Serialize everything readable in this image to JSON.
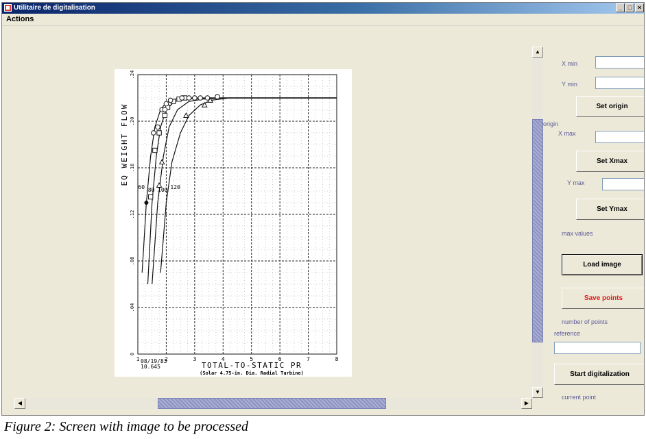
{
  "window": {
    "title": "Utilitaire de digitalisation",
    "buttons": {
      "minimize": "_",
      "maximize": "□",
      "close": "×"
    }
  },
  "menu": {
    "items": [
      "Actions"
    ]
  },
  "panel": {
    "xmin_label": "X min",
    "xmin_value": "",
    "ymin_label": "Y min",
    "ymin_value": "",
    "set_origin_label": "Set origin",
    "origin_label": "origin",
    "xmax_label": "X max",
    "xmax_value": "",
    "set_xmax_label": "Set Xmax",
    "ymax_label": "Y max",
    "ymax_value": "",
    "set_ymax_label": "Set Ymax",
    "max_values_label": "max values",
    "load_image_label": "Load image",
    "save_points_label": "Save points",
    "number_of_points_label": "number of points",
    "reference_label": "reference",
    "reference_value": "",
    "start_digitalization_label": "Start digitalization",
    "current_point_label": "current point"
  },
  "colors": {
    "accent_red": "#e01b1b",
    "label_blue": "#5a5a9a",
    "scroll_thumb": "#9aa0c8"
  },
  "chart_data": {
    "type": "line",
    "xlabel": "TOTAL-TO-STATIC PR",
    "subtitle": "(Solar 4.75-in. Dia. Radial Turbine)",
    "ylabel": "EQ WEIGHT FLOW",
    "stamp_date": "08/19/83",
    "stamp_id": "10.645",
    "xlim": [
      1,
      8
    ],
    "ylim": [
      0,
      0.24
    ],
    "x_ticks": [
      "1",
      "2",
      "3",
      "4",
      "5",
      "6",
      "7",
      "8"
    ],
    "y_ticks": [
      "0",
      ".04",
      ".08",
      ".12",
      ".16",
      ".20",
      ".24"
    ],
    "grid": true,
    "series": [
      {
        "name": "60",
        "marker": "filled-circle",
        "x": [
          1.15,
          1.3,
          1.45,
          1.6,
          1.8,
          2.0,
          2.3,
          2.7,
          3.5,
          8.0
        ],
        "y": [
          0.07,
          0.13,
          0.17,
          0.195,
          0.21,
          0.216,
          0.219,
          0.22,
          0.22,
          0.22
        ],
        "points_x": [
          1.3
        ],
        "points_y": [
          0.13
        ]
      },
      {
        "name": "80",
        "marker": "square",
        "x": [
          1.35,
          1.5,
          1.65,
          1.8,
          2.0,
          2.3,
          2.7,
          3.5,
          8.0
        ],
        "y": [
          0.06,
          0.13,
          0.17,
          0.195,
          0.21,
          0.217,
          0.219,
          0.22,
          0.22
        ],
        "points_x": [
          1.45,
          1.6,
          1.75,
          1.95,
          2.05,
          2.25,
          2.45,
          2.65
        ],
        "points_y": [
          0.135,
          0.175,
          0.19,
          0.205,
          0.212,
          0.217,
          0.219,
          0.22
        ]
      },
      {
        "name": "100",
        "marker": "open-circle",
        "x": [
          1.5,
          1.7,
          1.9,
          2.1,
          2.4,
          2.8,
          3.3,
          4.0,
          8.0
        ],
        "y": [
          0.06,
          0.13,
          0.17,
          0.195,
          0.21,
          0.217,
          0.219,
          0.22,
          0.22
        ],
        "points_x": [
          1.55,
          1.7,
          1.85,
          1.95,
          2.0,
          2.15,
          2.55,
          2.8,
          3.0,
          3.2,
          3.45,
          3.8
        ],
        "points_y": [
          0.19,
          0.195,
          0.21,
          0.21,
          0.215,
          0.218,
          0.22,
          0.22,
          0.22,
          0.22,
          0.22,
          0.221
        ]
      },
      {
        "name": "120",
        "marker": "triangle",
        "x": [
          1.8,
          2.0,
          2.2,
          2.5,
          2.8,
          3.2,
          3.6,
          4.2,
          8.0
        ],
        "y": [
          0.07,
          0.13,
          0.165,
          0.19,
          0.205,
          0.214,
          0.218,
          0.22,
          0.22
        ],
        "points_x": [
          1.75,
          1.85,
          2.7,
          3.35,
          3.55
        ],
        "points_y": [
          0.145,
          0.165,
          0.205,
          0.214,
          0.218
        ]
      }
    ]
  },
  "caption": "Figure 2: Screen with image to be processed"
}
